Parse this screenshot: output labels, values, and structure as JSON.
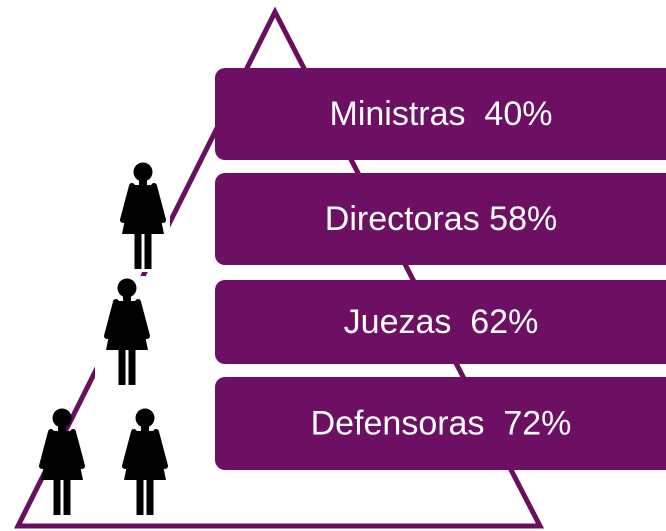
{
  "items": [
    {
      "text": "Ministras  40%"
    },
    {
      "text": "Directoras 58%"
    },
    {
      "text": "Juezas  62%"
    },
    {
      "text": "Defensoras  72%"
    }
  ]
}
